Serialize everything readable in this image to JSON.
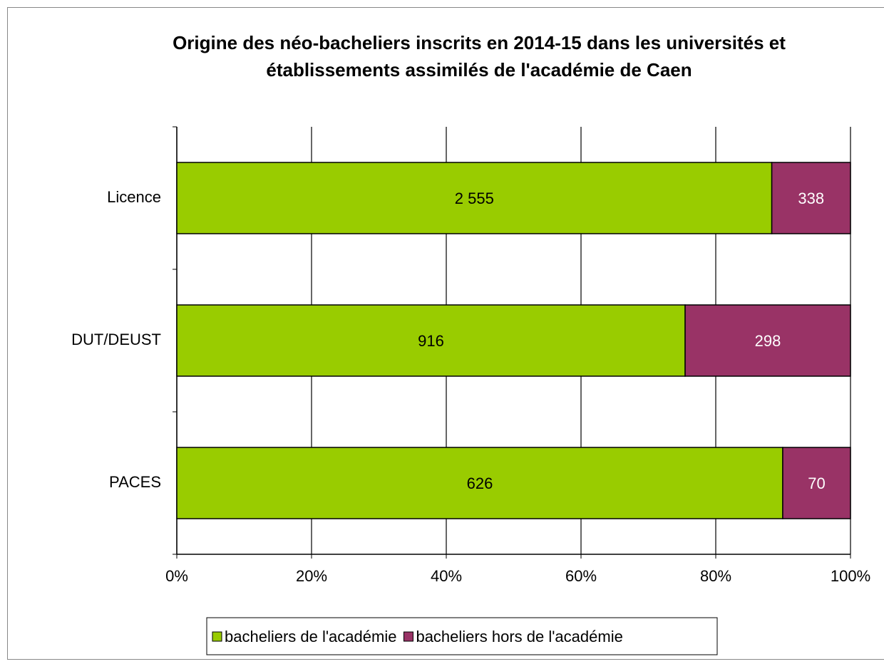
{
  "chart_data": {
    "type": "bar",
    "orientation": "horizontal",
    "stacking": "percent",
    "title": [
      "Origine des néo-bacheliers inscrits en 2014-15 dans les universités et",
      "établissements assimilés de l'académie de Caen"
    ],
    "categories": [
      "Licence",
      "DUT/DEUST",
      "PACES"
    ],
    "series": [
      {
        "name": "bacheliers de l'académie",
        "color": "#99cc00",
        "label_color": "#000000",
        "values": [
          2555,
          916,
          626
        ],
        "value_labels": [
          "2 555",
          "916",
          "626"
        ]
      },
      {
        "name": "bacheliers hors de l'académie",
        "color": "#993366",
        "label_color": "#ffffff",
        "values": [
          338,
          298,
          70
        ],
        "value_labels": [
          "338",
          "298",
          "70"
        ]
      }
    ],
    "xlim": [
      0,
      100
    ],
    "xticks": [
      {
        "value": 0,
        "label": "0%"
      },
      {
        "value": 20,
        "label": "20%"
      },
      {
        "value": 40,
        "label": "40%"
      },
      {
        "value": 60,
        "label": "60%"
      },
      {
        "value": 80,
        "label": "80%"
      },
      {
        "value": 100,
        "label": "100%"
      }
    ],
    "grid": true,
    "legend": "bottom"
  }
}
